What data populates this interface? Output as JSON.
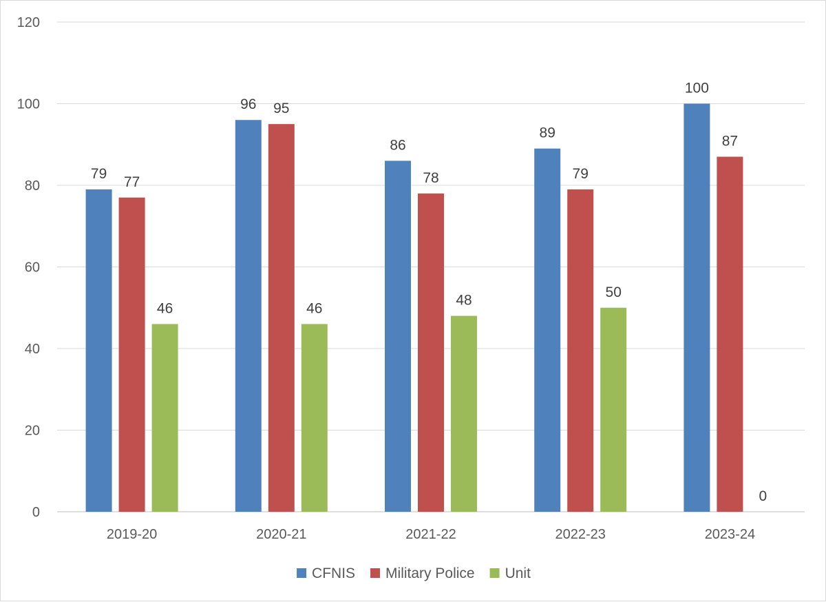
{
  "chart_data": {
    "type": "bar",
    "title": "",
    "xlabel": "",
    "ylabel": "",
    "ylim": [
      0,
      120
    ],
    "yticks": [
      0,
      20,
      40,
      60,
      80,
      100,
      120
    ],
    "grid": true,
    "legend_position": "bottom",
    "categories": [
      "2019-20",
      "2020-21",
      "2021-22",
      "2022-23",
      "2023-24"
    ],
    "series": [
      {
        "name": "CFNIS",
        "color": "#4f81bd",
        "values": [
          79,
          96,
          86,
          89,
          100
        ]
      },
      {
        "name": "Military Police",
        "color": "#c0504d",
        "values": [
          77,
          95,
          78,
          79,
          87
        ]
      },
      {
        "name": "Unit",
        "color": "#9bbb59",
        "values": [
          46,
          46,
          48,
          50,
          0
        ]
      }
    ]
  }
}
